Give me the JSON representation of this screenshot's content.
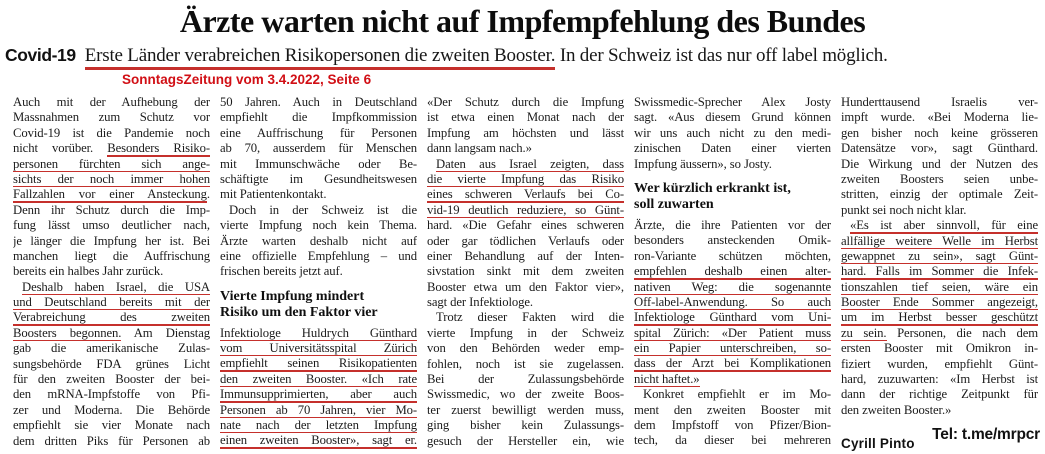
{
  "page": {
    "title": "Ärzte warten nicht auf Impfempfehlung des Bundes",
    "kicker": "Covid-19",
    "subtitle_underlined": "Erste Länder verabreichen Risikopersonen die zweiten Booster.",
    "subtitle_rest": " In der Schweiz ist das nur off label möglich.",
    "source": "SonntagsZeitung vom 3.4.2022, Seite 6",
    "byline": "Cyrill Pinto",
    "watermark": "Tel: t.me/mrpcr",
    "colors": {
      "underline_red": "#c5302c",
      "source_red": "#d10f15",
      "text": "#1b1b1b"
    }
  },
  "article": {
    "columns": [
      {
        "lines": [
          {
            "s": [
              [
                "Auch mit der Aufhebung der",
                0
              ]
            ]
          },
          {
            "s": [
              [
                "Massnahmen zum Schutz vor",
                0
              ]
            ]
          },
          {
            "s": [
              [
                "Covid-19 ist die Pandemie noch",
                0
              ]
            ]
          },
          {
            "s": [
              [
                "nicht vorüber. ",
                0
              ],
              [
                "Besonders Risiko-",
                1
              ]
            ]
          },
          {
            "s": [
              [
                "personen fürchten sich ange-",
                1
              ]
            ]
          },
          {
            "s": [
              [
                "sichts der noch immer hohen",
                1
              ]
            ]
          },
          {
            "s": [
              [
                "Fallzahlen vor einer Ansteckung",
                1
              ],
              [
                ".",
                0
              ]
            ]
          },
          {
            "s": [
              [
                "Denn ihr Schutz durch die Imp-",
                0
              ]
            ]
          },
          {
            "s": [
              [
                "fung lässt umso deutlicher nach,",
                0
              ]
            ]
          },
          {
            "s": [
              [
                "je länger die Impfung her ist. Bei",
                0
              ]
            ]
          },
          {
            "s": [
              [
                "manchen liegt die Auffrischung",
                0
              ]
            ]
          },
          {
            "s": [
              [
                "bereits ein halbes Jahr zurück.",
                0
              ]
            ],
            "end": 1
          },
          {
            "s": [
              [
                "Deshalb haben Israel, die USA",
                1
              ]
            ],
            "ind": 1
          },
          {
            "s": [
              [
                "und Deutschland bereits mit der",
                1
              ]
            ]
          },
          {
            "s": [
              [
                "Verabreichung des zweiten",
                1
              ]
            ]
          },
          {
            "s": [
              [
                "Boosters begonnen.",
                1
              ],
              [
                " Am Dienstag",
                0
              ]
            ]
          },
          {
            "s": [
              [
                "gab die amerikanische Zulas-",
                0
              ]
            ]
          },
          {
            "s": [
              [
                "sungsbehörde FDA grünes Licht",
                0
              ]
            ]
          },
          {
            "s": [
              [
                "für den zweiten Booster der bei-",
                0
              ]
            ]
          },
          {
            "s": [
              [
                "den mRNA-Impfstoffe von Pfi-",
                0
              ]
            ]
          },
          {
            "s": [
              [
                "zer und Moderna. Die Behörde",
                0
              ]
            ]
          },
          {
            "s": [
              [
                "empfiehlt sie vier Monate nach",
                0
              ]
            ]
          },
          {
            "s": [
              [
                "dem dritten Piks für Personen ab",
                0
              ]
            ]
          }
        ]
      },
      {
        "lines": [
          {
            "s": [
              [
                "50 Jahren. Auch in Deutschland",
                0
              ]
            ]
          },
          {
            "s": [
              [
                "empfiehlt die Impfkommission",
                0
              ]
            ]
          },
          {
            "s": [
              [
                "eine Auffrischung für Personen",
                0
              ]
            ]
          },
          {
            "s": [
              [
                "ab 70, ausserdem für Menschen",
                0
              ]
            ]
          },
          {
            "s": [
              [
                "mit Immunschwäche oder Be-",
                0
              ]
            ]
          },
          {
            "s": [
              [
                "schäftigte im Gesundheitswesen",
                0
              ]
            ]
          },
          {
            "s": [
              [
                "mit Patientenkontakt.",
                0
              ]
            ],
            "end": 1
          },
          {
            "s": [
              [
                "Doch in der Schweiz ist die",
                0
              ]
            ],
            "ind": 1
          },
          {
            "s": [
              [
                "vierte Impfung noch kein Thema.",
                0
              ]
            ]
          },
          {
            "s": [
              [
                "Ärzte warten deshalb nicht auf",
                0
              ]
            ]
          },
          {
            "s": [
              [
                "eine offizielle Empfehlung – und",
                0
              ]
            ]
          },
          {
            "s": [
              [
                "frischen bereits jetzt auf.",
                0
              ]
            ],
            "end": 1
          },
          {
            "s": [
              [
                "Vierte Impfung mindert",
                0
              ]
            ],
            "b": 1,
            "gap": 9
          },
          {
            "s": [
              [
                "Risiko um den Faktor vier",
                0
              ]
            ],
            "b": 1
          },
          {
            "s": [
              [
                "Infektiologe Huldrych Günthard",
                1
              ]
            ],
            "gap": 5
          },
          {
            "s": [
              [
                "vom Universitätsspital Zürich",
                1
              ]
            ]
          },
          {
            "s": [
              [
                "empfiehlt seinen Risikopatienten",
                1
              ]
            ]
          },
          {
            "s": [
              [
                "den zweiten Booster. «Ich rate",
                1
              ]
            ]
          },
          {
            "s": [
              [
                "Immunsupprimierten, aber auch",
                1
              ]
            ]
          },
          {
            "s": [
              [
                "Personen ab 70 Jahren, vier Mo-",
                1
              ]
            ]
          },
          {
            "s": [
              [
                "nate nach der letzten Impfung",
                1
              ]
            ]
          },
          {
            "s": [
              [
                "einen zweiten Booster», sagt er.",
                1
              ]
            ]
          }
        ]
      },
      {
        "lines": [
          {
            "s": [
              [
                "«Der Schutz durch die Impfung",
                0
              ]
            ]
          },
          {
            "s": [
              [
                "ist etwa einen Monat nach der",
                0
              ]
            ]
          },
          {
            "s": [
              [
                "Impfung am höchsten und lässt",
                0
              ]
            ]
          },
          {
            "s": [
              [
                "dann langsam nach.»",
                0
              ]
            ],
            "end": 1
          },
          {
            "s": [
              [
                "Daten aus Israel zeigten, dass",
                1
              ]
            ],
            "ind": 1
          },
          {
            "s": [
              [
                "die vierte Impfung das Risiko",
                1
              ]
            ]
          },
          {
            "s": [
              [
                "eines schweren Verlaufs bei Co-",
                1
              ]
            ]
          },
          {
            "s": [
              [
                "vid-19 deutlich reduziere, so Günt-",
                1
              ]
            ]
          },
          {
            "s": [
              [
                "hard. «Die Gefahr eines schweren",
                0
              ]
            ]
          },
          {
            "s": [
              [
                "oder gar tödlichen Verlaufs oder",
                0
              ]
            ]
          },
          {
            "s": [
              [
                "einer Behandlung auf der Inten-",
                0
              ]
            ]
          },
          {
            "s": [
              [
                "sivstation sinkt mit dem zweiten",
                0
              ]
            ]
          },
          {
            "s": [
              [
                "Booster etwa um den Faktor vier»,",
                0
              ]
            ]
          },
          {
            "s": [
              [
                "sagt der Infektiologe.",
                0
              ]
            ],
            "end": 1
          },
          {
            "s": [
              [
                "Trotz dieser Fakten wird die",
                0
              ]
            ],
            "ind": 1
          },
          {
            "s": [
              [
                "vierte Impfung in der Schweiz",
                0
              ]
            ]
          },
          {
            "s": [
              [
                "von den Behörden weder emp-",
                0
              ]
            ]
          },
          {
            "s": [
              [
                "fohlen, noch ist sie zugelassen.",
                0
              ]
            ]
          },
          {
            "s": [
              [
                "Bei der Zulassungsbehörde",
                0
              ]
            ]
          },
          {
            "s": [
              [
                "Swissmedic, wo der zweite Boos-",
                0
              ]
            ]
          },
          {
            "s": [
              [
                "ter zuerst bewilligt werden muss,",
                0
              ]
            ]
          },
          {
            "s": [
              [
                "ging bisher kein Zulassungs-",
                0
              ]
            ]
          },
          {
            "s": [
              [
                "gesuch der Hersteller ein, wie",
                0
              ]
            ]
          }
        ]
      },
      {
        "lines": [
          {
            "s": [
              [
                "Swissmedic-Sprecher Alex Josty",
                0
              ]
            ]
          },
          {
            "s": [
              [
                "sagt. «Aus diesem Grund können",
                0
              ]
            ]
          },
          {
            "s": [
              [
                "wir uns auch nicht zu den medi-",
                0
              ]
            ]
          },
          {
            "s": [
              [
                "zinischen Daten einer vierten",
                0
              ]
            ]
          },
          {
            "s": [
              [
                "Impfung äussern», so Josty.",
                0
              ]
            ],
            "end": 1
          },
          {
            "s": [
              [
                "Wer kürzlich erkrankt ist,",
                0
              ]
            ],
            "b": 1,
            "gap": 9
          },
          {
            "s": [
              [
                "soll zuwarten",
                0
              ]
            ],
            "b": 1
          },
          {
            "s": [
              [
                "Ärzte, die ihre Patienten vor der",
                0
              ]
            ],
            "gap": 5
          },
          {
            "s": [
              [
                "besonders ansteckenden Omik-",
                0
              ]
            ]
          },
          {
            "s": [
              [
                "ron-Variante schützen möchten,",
                0
              ]
            ]
          },
          {
            "s": [
              [
                "empfehlen deshalb einen alter-",
                1
              ]
            ]
          },
          {
            "s": [
              [
                "nativen Weg: die sogenannte",
                1
              ]
            ]
          },
          {
            "s": [
              [
                "Off-label-Anwendung. So auch",
                1
              ]
            ]
          },
          {
            "s": [
              [
                "Infektiologe Günthard vom Uni-",
                1
              ]
            ]
          },
          {
            "s": [
              [
                "spital Zürich: «Der Patient muss",
                1
              ]
            ]
          },
          {
            "s": [
              [
                "ein Papier unterschreiben, so-",
                1
              ]
            ]
          },
          {
            "s": [
              [
                "dass der Arzt bei Komplikationen",
                1
              ]
            ]
          },
          {
            "s": [
              [
                "nicht haftet.»",
                1
              ]
            ],
            "end": 1
          },
          {
            "s": [
              [
                "Konkret empfiehlt er im Mo-",
                0
              ]
            ],
            "ind": 1
          },
          {
            "s": [
              [
                "ment den zweiten Booster mit",
                0
              ]
            ]
          },
          {
            "s": [
              [
                "dem Impfstoff von Pfizer/Bion-",
                0
              ]
            ]
          },
          {
            "s": [
              [
                "tech, da dieser bei mehreren",
                0
              ]
            ]
          }
        ]
      },
      {
        "lines": [
          {
            "s": [
              [
                "Hunderttausend Israelis ver-",
                0
              ]
            ]
          },
          {
            "s": [
              [
                "impft wurde. «Bei Moderna lie-",
                0
              ]
            ]
          },
          {
            "s": [
              [
                "gen bisher noch keine grösseren",
                0
              ]
            ]
          },
          {
            "s": [
              [
                "Datensätze vor», sagt Günthard.",
                0
              ]
            ]
          },
          {
            "s": [
              [
                "Die Wirkung und der Nutzen des",
                0
              ]
            ]
          },
          {
            "s": [
              [
                "zweiten Boosters seien unbe-",
                0
              ]
            ]
          },
          {
            "s": [
              [
                "stritten, einzig der optimale Zeit-",
                0
              ]
            ]
          },
          {
            "s": [
              [
                "punkt sei noch nicht klar.",
                0
              ]
            ],
            "end": 1
          },
          {
            "s": [
              [
                "«Es ist aber sinnvoll, für eine",
                1
              ]
            ],
            "ind": 1
          },
          {
            "s": [
              [
                "allfällige weitere Welle im Herbst",
                1
              ]
            ]
          },
          {
            "s": [
              [
                "gewappnet zu sein», sagt Günt-",
                1
              ]
            ]
          },
          {
            "s": [
              [
                "hard. Falls im Sommer die Infek-",
                1
              ]
            ]
          },
          {
            "s": [
              [
                "tionszahlen tief seien, wäre ein",
                1
              ]
            ]
          },
          {
            "s": [
              [
                "Booster Ende Sommer angezeigt,",
                1
              ]
            ]
          },
          {
            "s": [
              [
                "um im Herbst besser geschützt",
                1
              ]
            ]
          },
          {
            "s": [
              [
                "zu sein.",
                1
              ],
              [
                " Personen, die nach dem",
                0
              ]
            ]
          },
          {
            "s": [
              [
                "ersten Booster mit Omikron in-",
                0
              ]
            ]
          },
          {
            "s": [
              [
                "fiziert wurden, empfiehlt Günt-",
                0
              ]
            ]
          },
          {
            "s": [
              [
                "hard, zuzuwarten: «Im Herbst ist",
                0
              ]
            ]
          },
          {
            "s": [
              [
                "dann der richtige Zeitpunkt für",
                0
              ]
            ]
          },
          {
            "s": [
              [
                "den zweiten Booster.»",
                0
              ]
            ],
            "end": 1
          }
        ]
      }
    ]
  }
}
